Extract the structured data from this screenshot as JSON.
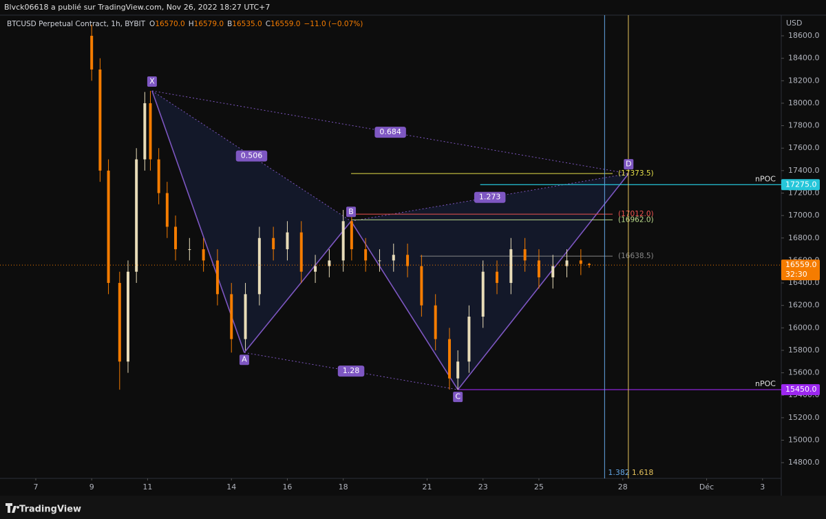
{
  "header": {
    "publisher": "Blvck06618 a publié sur TradingView.com, Nov 26, 2022 18:27 UTC+7"
  },
  "footer": {
    "brand": "TradingView"
  },
  "chart_data": {
    "type": "candlestick",
    "title": "BTCUSD Perpetual Contract, 1h, BYBIT",
    "currency": "USD",
    "ohlc": [
      {
        "letter": "O",
        "value": 16570,
        "label": "16570.0"
      },
      {
        "letter": "H",
        "value": 16579,
        "label": "16579.0"
      },
      {
        "letter": "B",
        "value": 16535,
        "label": "16535.0"
      },
      {
        "letter": "C",
        "value": 16559,
        "label": "16559.0"
      }
    ],
    "change": "−11.0 (−0.07%)",
    "up_color": "#e8dcb8",
    "down_color": "#f57c00",
    "x": [
      9.0,
      9.3,
      9.6,
      10.0,
      10.3,
      10.6,
      10.9,
      11.1,
      11.4,
      11.7,
      12.0,
      12.5,
      13.0,
      13.5,
      14.0,
      14.5,
      15.0,
      15.5,
      16.0,
      16.5,
      17.0,
      17.5,
      18.0,
      18.3,
      18.8,
      19.3,
      19.8,
      20.3,
      20.8,
      21.3,
      21.8,
      22.1,
      22.5,
      23.0,
      23.5,
      24.0,
      24.5,
      25.0,
      25.5,
      26.0,
      26.5,
      26.8
    ],
    "open": [
      18600,
      18300,
      17400,
      16400,
      15700,
      16500,
      17500,
      18000,
      17500,
      17200,
      16900,
      16700,
      16700,
      16600,
      16300,
      15900,
      16300,
      16800,
      16700,
      16850,
      16500,
      16550,
      16600,
      16950,
      16700,
      16600,
      16600,
      16650,
      16550,
      16200,
      15900,
      15550,
      15700,
      16100,
      16500,
      16400,
      16700,
      16600,
      16450,
      16550,
      16600,
      16570
    ],
    "high": [
      18700,
      18400,
      17500,
      16500,
      16600,
      17600,
      18100,
      18110,
      17600,
      17300,
      17000,
      16800,
      16800,
      16700,
      16400,
      16400,
      16900,
      16900,
      16950,
      16950,
      16650,
      16700,
      17050,
      17050,
      16800,
      16700,
      16750,
      16750,
      16650,
      16300,
      16000,
      15800,
      16200,
      16600,
      16600,
      16800,
      16800,
      16700,
      16650,
      16700,
      16700,
      16579
    ],
    "low": [
      18200,
      17300,
      16300,
      15450,
      15600,
      16400,
      17400,
      17400,
      17100,
      16800,
      16600,
      16600,
      16500,
      16200,
      15780,
      15800,
      16200,
      16600,
      16600,
      16400,
      16400,
      16450,
      16500,
      16600,
      16500,
      16500,
      16500,
      16450,
      16100,
      15800,
      15450,
      15450,
      15600,
      16000,
      16300,
      16300,
      16500,
      16350,
      16350,
      16450,
      16470,
      16535
    ],
    "close": [
      18300,
      17400,
      16400,
      15700,
      16500,
      17500,
      18000,
      17500,
      17200,
      16900,
      16700,
      16700,
      16600,
      16300,
      15900,
      16300,
      16800,
      16700,
      16850,
      16500,
      16550,
      16600,
      16950,
      16700,
      16600,
      16600,
      16650,
      16550,
      16200,
      15900,
      15550,
      15700,
      16100,
      16500,
      16400,
      16700,
      16600,
      16450,
      16550,
      16600,
      16570,
      16559
    ],
    "xlim": [
      5.72,
      33.67
    ],
    "xticks": [
      7,
      9,
      11,
      14,
      16,
      18,
      21,
      23,
      25,
      28,
      {
        "value": 31,
        "label": "Déc"
      },
      {
        "value": 33,
        "label": "3"
      }
    ],
    "ylim": [
      14660,
      18784
    ],
    "yticks": [
      {
        "value": 14800,
        "label": "14800.0"
      },
      {
        "value": 15000,
        "label": "15000.0"
      },
      {
        "value": 15200,
        "label": "15200.0"
      },
      {
        "value": 15400,
        "label": "15400.0"
      },
      {
        "value": 15600,
        "label": "15600.0"
      },
      {
        "value": 15800,
        "label": "15800.0"
      },
      {
        "value": 16000,
        "label": "16000.0"
      },
      {
        "value": 16200,
        "label": "16200.0"
      },
      {
        "value": 16400,
        "label": "16400.0"
      },
      {
        "value": 16600,
        "label": "16600.0"
      },
      {
        "value": 16800,
        "label": "16800.0"
      },
      {
        "value": 17000,
        "label": "17000.0"
      },
      {
        "value": 17200,
        "label": "17200.0"
      },
      {
        "value": 17400,
        "label": "17400.0"
      },
      {
        "value": 17600,
        "label": "17600.0"
      },
      {
        "value": 17800,
        "label": "17800.0"
      },
      {
        "value": 18000,
        "label": "18000.0"
      },
      {
        "value": 18200,
        "label": "18200.0"
      },
      {
        "value": 18400,
        "label": "18400.0"
      },
      {
        "value": 18600,
        "label": "18600.0"
      }
    ],
    "pattern": {
      "color": "#7e57c2",
      "points": [
        {
          "name": "X",
          "x": 11.16,
          "y": 18110
        },
        {
          "name": "A",
          "x": 14.46,
          "y": 15780
        },
        {
          "name": "B",
          "x": 18.28,
          "y": 16950
        },
        {
          "name": "C",
          "x": 22.1,
          "y": 15450
        },
        {
          "name": "D",
          "x": 28.21,
          "y": 17373.5
        }
      ],
      "ratios": [
        0.506,
        0.684,
        1.273,
        1.28
      ]
    },
    "levels": [
      {
        "value": 17373.5,
        "label": "(17373.5)",
        "color": "#e6e04a",
        "start": 18.28
      },
      {
        "value": 17012,
        "label": "(17012.0)",
        "color": "#ef5350",
        "start": 18.28
      },
      {
        "value": 16962,
        "label": "(16962.0)",
        "color": "#b9d98a",
        "start": 18.28
      },
      {
        "value": 16638.5,
        "label": "(16638.5)",
        "color": "#888888",
        "start": 20.75
      }
    ],
    "npoc": [
      {
        "name": "nPOC",
        "value": 17275,
        "label": "17275.0",
        "color": "#26c6da",
        "start": 22.9
      },
      {
        "name": "nPOC",
        "value": 15450,
        "label": "15450.0",
        "color": "#9c27f0",
        "start": 22.1
      }
    ],
    "time_fibs": [
      {
        "value": 1.382,
        "x": 27.35,
        "color": "#64a8e8"
      },
      {
        "value": 1.618,
        "x": 28.2,
        "color": "#e6c35c"
      }
    ],
    "last_price": {
      "value": 16559,
      "label": "16559.0",
      "countdown": "32:30",
      "color": "#f57c00"
    }
  }
}
